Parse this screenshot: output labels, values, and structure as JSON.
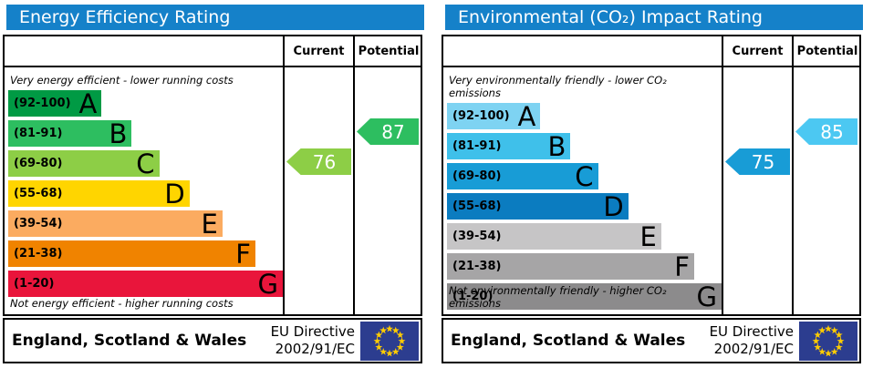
{
  "page": {
    "background": "#ffffff",
    "header_blue": "#1581c9"
  },
  "panels": [
    {
      "title": "Energy Efficiency Rating",
      "title_bg": "#1581c9",
      "columns": {
        "current": "Current",
        "potential": "Potential"
      },
      "top_caption": "Very energy efficient - lower running costs",
      "bottom_caption": "Not energy efficient - higher running costs",
      "bands": [
        {
          "range": "(92-100)",
          "letter": "A",
          "color": "#009a44",
          "width_pct": 34
        },
        {
          "range": "(81-91)",
          "letter": "B",
          "color": "#2dbe60",
          "width_pct": 45
        },
        {
          "range": "(69-80)",
          "letter": "C",
          "color": "#8dce46",
          "width_pct": 55
        },
        {
          "range": "(55-68)",
          "letter": "D",
          "color": "#ffd500",
          "width_pct": 66
        },
        {
          "range": "(39-54)",
          "letter": "E",
          "color": "#fbab60",
          "width_pct": 78
        },
        {
          "range": "(21-38)",
          "letter": "F",
          "color": "#f08300",
          "width_pct": 90
        },
        {
          "range": "(1-20)",
          "letter": "G",
          "color": "#e9153b",
          "width_pct": 100
        }
      ],
      "current": {
        "value": "76",
        "band": "C",
        "color": "#8dce46"
      },
      "potential": {
        "value": "87",
        "band": "B",
        "color": "#2dbe60"
      },
      "footer": {
        "region": "England, Scotland & Wales",
        "directive_line1": "EU Directive",
        "directive_line2": "2002/91/EC",
        "flag_bg": "#2c3d8f",
        "flag_star": "#ffcc00"
      }
    },
    {
      "title": "Environmental (CO₂) Impact Rating",
      "title_bg": "#1581c9",
      "columns": {
        "current": "Current",
        "potential": "Potential"
      },
      "top_caption": "Very environmentally friendly - lower CO₂ emissions",
      "bottom_caption": "Not environmentally friendly - higher CO₂ emissions",
      "bands": [
        {
          "range": "(92-100)",
          "letter": "A",
          "color": "#7ed3f2",
          "width_pct": 34
        },
        {
          "range": "(81-91)",
          "letter": "B",
          "color": "#3fc0ea",
          "width_pct": 45
        },
        {
          "range": "(69-80)",
          "letter": "C",
          "color": "#189cd6",
          "width_pct": 55
        },
        {
          "range": "(55-68)",
          "letter": "D",
          "color": "#0b7cc0",
          "width_pct": 66
        },
        {
          "range": "(39-54)",
          "letter": "E",
          "color": "#c6c5c6",
          "width_pct": 78
        },
        {
          "range": "(21-38)",
          "letter": "F",
          "color": "#a6a5a6",
          "width_pct": 90
        },
        {
          "range": "(1-20)",
          "letter": "G",
          "color": "#8c8b8c",
          "width_pct": 100
        }
      ],
      "current": {
        "value": "75",
        "band": "C",
        "color": "#189cd6"
      },
      "potential": {
        "value": "85",
        "band": "B",
        "color": "#4cc8f2"
      },
      "footer": {
        "region": "England, Scotland & Wales",
        "directive_line1": "EU Directive",
        "directive_line2": "2002/91/EC",
        "flag_bg": "#2c3d8f",
        "flag_star": "#ffcc00"
      }
    }
  ],
  "chart_data": [
    {
      "type": "bar",
      "title": "Energy Efficiency Rating",
      "categories": [
        "A",
        "B",
        "C",
        "D",
        "E",
        "F",
        "G"
      ],
      "band_ranges": [
        "92-100",
        "81-91",
        "69-80",
        "55-68",
        "39-54",
        "21-38",
        "1-20"
      ],
      "values": [
        34,
        45,
        55,
        66,
        78,
        90,
        100
      ],
      "current": 76,
      "current_band": "C",
      "potential": 87,
      "potential_band": "B",
      "top_caption": "Very energy efficient - lower running costs",
      "bottom_caption": "Not energy efficient - higher running costs",
      "region": "England, Scotland & Wales",
      "directive": "EU Directive 2002/91/EC"
    },
    {
      "type": "bar",
      "title": "Environmental (CO₂) Impact Rating",
      "categories": [
        "A",
        "B",
        "C",
        "D",
        "E",
        "F",
        "G"
      ],
      "band_ranges": [
        "92-100",
        "81-91",
        "69-80",
        "55-68",
        "39-54",
        "21-38",
        "1-20"
      ],
      "values": [
        34,
        45,
        55,
        66,
        78,
        90,
        100
      ],
      "current": 75,
      "current_band": "C",
      "potential": 85,
      "potential_band": "B",
      "top_caption": "Very environmentally friendly - lower CO₂ emissions",
      "bottom_caption": "Not environmentally friendly - higher CO₂ emissions",
      "region": "England, Scotland & Wales",
      "directive": "EU Directive 2002/91/EC"
    }
  ]
}
